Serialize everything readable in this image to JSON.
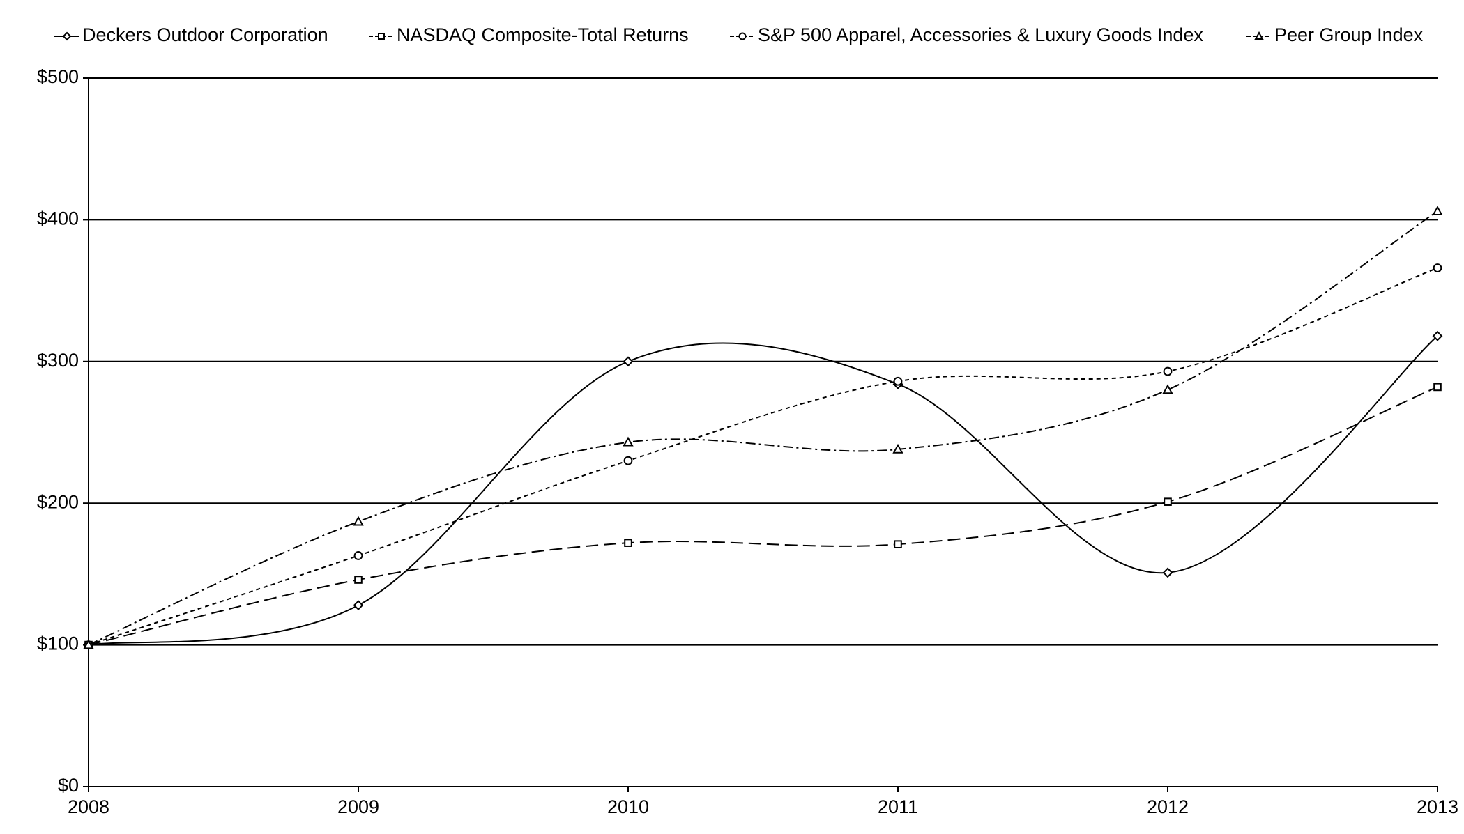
{
  "chart_data": {
    "type": "line",
    "x": [
      2008,
      2009,
      2010,
      2011,
      2012,
      2013
    ],
    "xlim": [
      2008,
      2013
    ],
    "xticks": [
      2008,
      2009,
      2010,
      2011,
      2012,
      2013
    ],
    "ylim": [
      0,
      500
    ],
    "yticks": [
      {
        "value": 0,
        "label": "$0"
      },
      {
        "value": 100,
        "label": "$100"
      },
      {
        "value": 200,
        "label": "$200"
      },
      {
        "value": 300,
        "label": "$300"
      },
      {
        "value": 400,
        "label": "$400"
      },
      {
        "value": 500,
        "label": "$500"
      }
    ],
    "grid": true,
    "legend": "top",
    "series": [
      {
        "name": "Deckers Outdoor Corporation",
        "color": "#000000",
        "marker": "diamond",
        "dash": "solid",
        "values": [
          100,
          128,
          300,
          284,
          151,
          318
        ]
      },
      {
        "name": "NASDAQ Composite-Total Returns",
        "color": "#000000",
        "marker": "square",
        "dash": "long",
        "values": [
          100,
          146,
          172,
          171,
          201,
          282
        ]
      },
      {
        "name": "S&P 500 Apparel, Accessories & Luxury Goods Index",
        "color": "#000000",
        "marker": "circle",
        "dash": "short",
        "values": [
          100,
          163,
          230,
          286,
          293,
          366
        ]
      },
      {
        "name": "Peer Group Index",
        "color": "#000000",
        "marker": "triangle",
        "dash": "dashdot",
        "values": [
          100,
          187,
          243,
          238,
          280,
          406
        ]
      }
    ]
  }
}
